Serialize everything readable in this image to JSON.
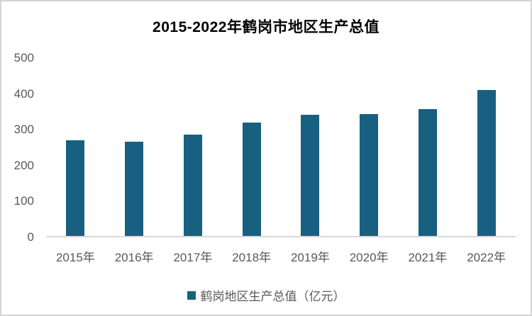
{
  "figure": {
    "title": "2015-2022年鹤岗市地区生产总值",
    "legend": {
      "label": "鹤岗地区生产总值（亿元）"
    }
  },
  "chart_data": {
    "type": "bar",
    "title": "2015-2022年鹤岗市地区生产总值",
    "categories": [
      "2015年",
      "2016年",
      "2017年",
      "2018年",
      "2019年",
      "2020年",
      "2021年",
      "2022年"
    ],
    "series": [
      {
        "name": "鹤岗地区生产总值（亿元）",
        "values": [
          266,
          263,
          283,
          317,
          338,
          340,
          354,
          408
        ]
      }
    ],
    "xlabel": "",
    "ylabel": "",
    "ylim": [
      0,
      500
    ],
    "yticks": [
      0,
      100,
      200,
      300,
      400,
      500
    ],
    "grid": false,
    "legend_position": "bottom",
    "colors": {
      "bar": "#186080",
      "axis_line": "#d9d9d9",
      "tick_label": "#595959",
      "title_text": "#000000",
      "border": "#d4d4d4",
      "background": "#ffffff"
    }
  }
}
